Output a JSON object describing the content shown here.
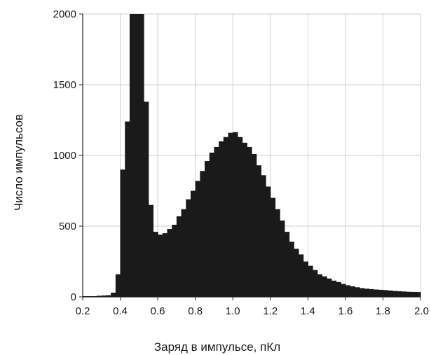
{
  "chart_data": {
    "type": "bar",
    "title": "",
    "xlabel": "Заряд в импульсе, пКл",
    "ylabel": "Число импульсов",
    "xlim": [
      0.2,
      2.0
    ],
    "ylim": [
      0,
      2000
    ],
    "grid": true,
    "legend": "none",
    "bar_color": "#1a1a1a",
    "grid_color": "#cfcfcf",
    "bin_width": 0.025,
    "x_ticks": [
      "0.2",
      "0.4",
      "0.6",
      "0.8",
      "1.0",
      "1.2",
      "1.4",
      "1.6",
      "1.8",
      "2.0"
    ],
    "y_ticks": [
      "0",
      "500",
      "1000",
      "1500",
      "2000"
    ],
    "bin_starts": [
      0.2,
      0.225,
      0.25,
      0.275,
      0.3,
      0.325,
      0.35,
      0.375,
      0.4,
      0.425,
      0.45,
      0.475,
      0.5,
      0.525,
      0.55,
      0.575,
      0.6,
      0.625,
      0.65,
      0.675,
      0.7,
      0.725,
      0.75,
      0.775,
      0.8,
      0.825,
      0.85,
      0.875,
      0.9,
      0.925,
      0.95,
      0.975,
      1.0,
      1.025,
      1.05,
      1.075,
      1.1,
      1.125,
      1.15,
      1.175,
      1.2,
      1.225,
      1.25,
      1.275,
      1.3,
      1.325,
      1.35,
      1.375,
      1.4,
      1.425,
      1.45,
      1.475,
      1.5,
      1.525,
      1.55,
      1.575,
      1.6,
      1.625,
      1.65,
      1.675,
      1.7,
      1.725,
      1.75,
      1.775,
      1.8,
      1.825,
      1.85,
      1.875,
      1.9,
      1.925,
      1.95,
      1.975
    ],
    "values": [
      5,
      5,
      5,
      8,
      10,
      12,
      30,
      160,
      900,
      1240,
      2000,
      2000,
      2000,
      1380,
      650,
      460,
      440,
      450,
      480,
      510,
      570,
      620,
      690,
      750,
      820,
      890,
      960,
      1020,
      1060,
      1100,
      1130,
      1160,
      1165,
      1130,
      1090,
      1060,
      1010,
      930,
      860,
      780,
      700,
      620,
      540,
      460,
      390,
      340,
      300,
      250,
      220,
      190,
      160,
      145,
      130,
      115,
      105,
      92,
      82,
      75,
      68,
      62,
      58,
      55,
      52,
      50,
      48,
      45,
      42,
      40,
      38,
      36,
      35,
      34
    ]
  }
}
